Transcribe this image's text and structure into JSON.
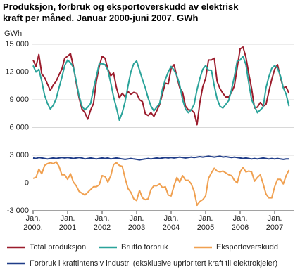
{
  "chart_data": {
    "type": "line",
    "title": "Produksjon, forbruk og eksportoverskudd av elektrisk kraft per måned. Januar 2000-juni 2007. GWh",
    "y_label": "GWh",
    "categories": [
      "Jan.\n2000.",
      null,
      null,
      null,
      null,
      null,
      null,
      null,
      null,
      null,
      null,
      null,
      "Jan.\n2001",
      null,
      null,
      null,
      null,
      null,
      null,
      null,
      null,
      null,
      null,
      null,
      "Jan.\n2002",
      null,
      null,
      null,
      null,
      null,
      null,
      null,
      null,
      null,
      null,
      null,
      "Jan.\n2003",
      null,
      null,
      null,
      null,
      null,
      null,
      null,
      null,
      null,
      null,
      null,
      "Jan.\n2004",
      null,
      null,
      null,
      null,
      null,
      null,
      null,
      null,
      null,
      null,
      null,
      "Jan.\n2005",
      null,
      null,
      null,
      null,
      null,
      null,
      null,
      null,
      null,
      null,
      null,
      "Jan.\n2006",
      null,
      null,
      null,
      null,
      null,
      null,
      null,
      null,
      null,
      null,
      null,
      "Jan.\n2007",
      null,
      null,
      null,
      null,
      null
    ],
    "ylim": [
      -3000,
      15000
    ],
    "yticks": [
      {
        "value": -3000,
        "label": "-3 000"
      },
      0,
      {
        "value": 3000,
        "label": "3 000"
      },
      {
        "value": 6000,
        "label": "6 000"
      },
      {
        "value": 9000,
        "label": "9 000"
      },
      {
        "value": 12000,
        "label": "12 000"
      },
      {
        "value": 15000,
        "label": "15 000"
      }
    ],
    "grid": true,
    "series": [
      {
        "name": "Total produksjon",
        "color": "#9b1c2c",
        "values": [
          13300,
          12600,
          13900,
          11800,
          11400,
          10700,
          10000,
          10600,
          11000,
          11700,
          12300,
          13500,
          13700,
          14000,
          12600,
          10800,
          9200,
          8000,
          7600,
          6900,
          7900,
          8600,
          11000,
          12600,
          13700,
          13500,
          12300,
          11600,
          11900,
          10300,
          9200,
          9700,
          9300,
          9900,
          9600,
          9800,
          9700,
          9000,
          8800,
          7500,
          7300,
          7600,
          7200,
          7800,
          8500,
          9700,
          10800,
          10700,
          12400,
          12800,
          11500,
          10300,
          9800,
          8300,
          7900,
          7900,
          7600,
          6300,
          8700,
          10400,
          11300,
          13300,
          13300,
          13500,
          11000,
          10200,
          9700,
          9300,
          9300,
          9800,
          10500,
          12500,
          14500,
          14700,
          13600,
          11800,
          10200,
          8100,
          8200,
          8700,
          8300,
          8500,
          9900,
          11200,
          12300,
          12800,
          11400,
          10300,
          10400,
          9700
        ]
      },
      {
        "name": "Brutto forbruk",
        "color": "#2aa39a",
        "values": [
          12700,
          12000,
          12300,
          11000,
          9500,
          8600,
          8000,
          8400,
          9100,
          10300,
          11400,
          12700,
          13300,
          13000,
          12500,
          11000,
          9400,
          8300,
          7900,
          8200,
          8600,
          10200,
          11500,
          12900,
          12900,
          12800,
          12200,
          10800,
          9300,
          8100,
          6800,
          7600,
          8800,
          10500,
          12000,
          12900,
          13200,
          12200,
          11200,
          10300,
          9200,
          8300,
          7800,
          8200,
          8600,
          10200,
          11200,
          12000,
          12600,
          12200,
          11600,
          10600,
          9000,
          8000,
          7600,
          7900,
          8500,
          10100,
          11300,
          12300,
          12700,
          12200,
          12200,
          10500,
          9100,
          8300,
          8100,
          8500,
          8900,
          10100,
          11500,
          13200,
          13300,
          13700,
          12800,
          10800,
          9000,
          8300,
          7600,
          7900,
          8200,
          10300,
          11500,
          12400,
          12700,
          12400,
          11600,
          10300,
          9600,
          8300
        ]
      },
      {
        "name": "Eksportoverskudd",
        "color": "#f0a050",
        "values": [
          500,
          600,
          1500,
          1000,
          1900,
          2100,
          2200,
          2100,
          2300,
          1800,
          900,
          900,
          400,
          1000,
          100,
          -300,
          -900,
          -1100,
          -1300,
          -1000,
          -700,
          -400,
          -400,
          -200,
          800,
          700,
          100,
          800,
          2000,
          2200,
          1900,
          1800,
          500,
          -600,
          -1000,
          -1700,
          -1900,
          -800,
          -1600,
          -1800,
          -1700,
          -700,
          -300,
          -300,
          -100,
          -500,
          -400,
          -1300,
          -1400,
          -300,
          600,
          100,
          800,
          300,
          300,
          -100,
          -900,
          -2400,
          -2000,
          -1800,
          -1400,
          500,
          1100,
          1600,
          1300,
          1200,
          1300,
          1100,
          900,
          800,
          300,
          0,
          1200,
          1700,
          1200,
          1300,
          1200,
          200,
          600,
          900,
          -100,
          -1200,
          -1600,
          -1600,
          -400,
          400,
          400,
          -100,
          800,
          1400
        ]
      },
      {
        "name": "Forbruk i kraftintensiv industri (eksklusive uprioritert kraft til elektrokjeler)",
        "color": "#1f3c88",
        "values": [
          2700,
          2650,
          2750,
          2700,
          2650,
          2600,
          2650,
          2700,
          2650,
          2700,
          2750,
          2700,
          2750,
          2700,
          2650,
          2700,
          2750,
          2700,
          2600,
          2650,
          2700,
          2650,
          2600,
          2650,
          2700,
          2650,
          2700,
          2600,
          2650,
          2700,
          2650,
          2600,
          2550,
          2600,
          2650,
          2600,
          2550,
          2500,
          2550,
          2600,
          2650,
          2600,
          2650,
          2700,
          2650,
          2700,
          2750,
          2700,
          2750,
          2700,
          2750,
          2800,
          2750,
          2700,
          2750,
          2800,
          2750,
          2800,
          2850,
          2800,
          2850,
          2900,
          2850,
          2800,
          2850,
          2900,
          2800,
          2850,
          2800,
          2750,
          2800,
          2750,
          2700,
          2650,
          2700,
          2650,
          2600,
          2650,
          2600,
          2650,
          2700,
          2650,
          2600,
          2650,
          2600,
          2650,
          2600,
          2550,
          2600,
          2600
        ]
      }
    ]
  }
}
